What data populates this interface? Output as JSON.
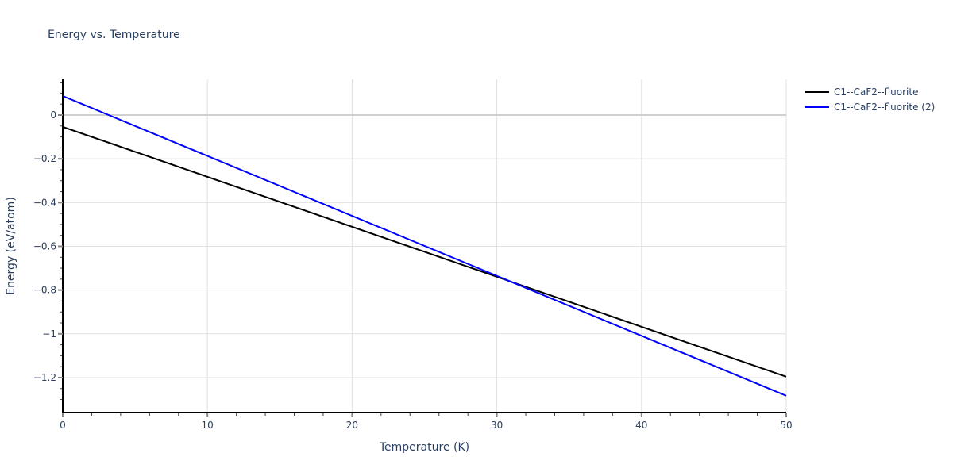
{
  "chart_data": {
    "type": "line",
    "title": "Energy vs. Temperature",
    "xlabel": "Temperature (K)",
    "ylabel": "Energy (eV/atom)",
    "xlim": [
      0,
      50
    ],
    "ylim": [
      -1.35,
      0.16
    ],
    "x_ticks": [
      0,
      10,
      20,
      30,
      40,
      50
    ],
    "y_ticks": [
      0,
      -0.2,
      -0.4,
      -0.6,
      -0.8,
      -1,
      -1.2
    ],
    "y_tick_labels": [
      "0",
      "−0.2",
      "−0.4",
      "−0.6",
      "−0.8",
      "−1",
      "−1.2"
    ],
    "grid": true,
    "legend_position": "right-top",
    "series": [
      {
        "name": "C1--CaF2--fluorite",
        "color": "#000000",
        "x": [
          0,
          50
        ],
        "values": [
          -0.054,
          -1.196
        ]
      },
      {
        "name": "C1--CaF2--fluorite (2)",
        "color": "#0000ff",
        "x": [
          0,
          50
        ],
        "values": [
          0.087,
          -1.283
        ]
      }
    ]
  },
  "legend": {
    "items": [
      {
        "label": "C1--CaF2--fluorite",
        "color": "#000000"
      },
      {
        "label": "C1--CaF2--fluorite (2)",
        "color": "#0000ff"
      }
    ]
  }
}
